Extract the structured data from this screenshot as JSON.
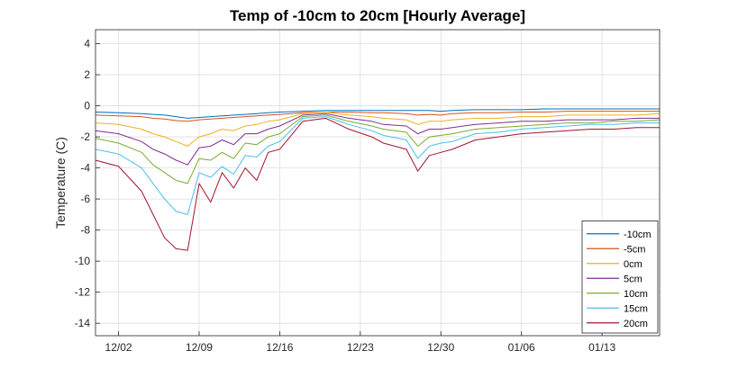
{
  "chart_data": {
    "type": "line",
    "title": "Temp of -10cm to 20cm [Hourly Average]",
    "ylabel": "Temperature (C)",
    "xlabel": "",
    "ylim": [
      -14.8,
      4.9
    ],
    "xlim": [
      "2025-11-30",
      "2026-01-18"
    ],
    "x_ticks": [
      {
        "date": "2025-12-02",
        "label": "12/02"
      },
      {
        "date": "2025-12-09",
        "label": "12/09"
      },
      {
        "date": "2025-12-16",
        "label": "12/16"
      },
      {
        "date": "2025-12-23",
        "label": "12/23"
      },
      {
        "date": "2025-12-30",
        "label": "12/30"
      },
      {
        "date": "2026-01-06",
        "label": "01/06"
      },
      {
        "date": "2026-01-13",
        "label": "01/13"
      }
    ],
    "y_ticks": [
      4,
      2,
      0,
      -2,
      -4,
      -6,
      -8,
      -10,
      -12,
      -14
    ],
    "grid": true,
    "legend_position": "bottom-right",
    "x": [
      "2025-11-30",
      "2025-12-02",
      "2025-12-04",
      "2025-12-05",
      "2025-12-06",
      "2025-12-07",
      "2025-12-08",
      "2025-12-09",
      "2025-12-10",
      "2025-12-11",
      "2025-12-12",
      "2025-12-13",
      "2025-12-14",
      "2025-12-15",
      "2025-12-16",
      "2025-12-18",
      "2025-12-20",
      "2025-12-22",
      "2025-12-24",
      "2025-12-25",
      "2025-12-27",
      "2025-12-28",
      "2025-12-29",
      "2025-12-30",
      "2025-12-31",
      "2026-01-02",
      "2026-01-04",
      "2026-01-06",
      "2026-01-08",
      "2026-01-10",
      "2026-01-12",
      "2026-01-14",
      "2026-01-16",
      "2026-01-18"
    ],
    "series": [
      {
        "name": "-10cm",
        "color": "#0072BD",
        "values": [
          -0.4,
          -0.45,
          -0.5,
          -0.55,
          -0.6,
          -0.7,
          -0.8,
          -0.75,
          -0.7,
          -0.65,
          -0.6,
          -0.55,
          -0.5,
          -0.45,
          -0.4,
          -0.35,
          -0.3,
          -0.3,
          -0.3,
          -0.3,
          -0.3,
          -0.3,
          -0.3,
          -0.35,
          -0.3,
          -0.25,
          -0.25,
          -0.25,
          -0.2,
          -0.2,
          -0.2,
          -0.2,
          -0.2,
          -0.2
        ]
      },
      {
        "name": "-5cm",
        "color": "#D95319",
        "values": [
          -0.6,
          -0.65,
          -0.7,
          -0.8,
          -0.85,
          -0.95,
          -1.0,
          -0.9,
          -0.85,
          -0.8,
          -0.75,
          -0.7,
          -0.65,
          -0.6,
          -0.55,
          -0.45,
          -0.4,
          -0.4,
          -0.45,
          -0.45,
          -0.5,
          -0.6,
          -0.55,
          -0.6,
          -0.5,
          -0.45,
          -0.45,
          -0.4,
          -0.4,
          -0.35,
          -0.35,
          -0.35,
          -0.35,
          -0.35
        ]
      },
      {
        "name": "0cm",
        "color": "#EDB120",
        "values": [
          -1.1,
          -1.2,
          -1.5,
          -1.8,
          -2.0,
          -2.3,
          -2.6,
          -2.0,
          -1.8,
          -1.5,
          -1.6,
          -1.3,
          -1.2,
          -1.0,
          -0.9,
          -0.5,
          -0.4,
          -0.6,
          -0.7,
          -0.8,
          -0.9,
          -1.2,
          -1.0,
          -1.0,
          -0.9,
          -0.8,
          -0.8,
          -0.7,
          -0.7,
          -0.6,
          -0.6,
          -0.6,
          -0.6,
          -0.5
        ]
      },
      {
        "name": "5cm",
        "color": "#7E2F8E",
        "values": [
          -1.6,
          -1.8,
          -2.3,
          -2.8,
          -3.1,
          -3.5,
          -3.8,
          -2.7,
          -2.6,
          -2.2,
          -2.5,
          -1.8,
          -1.8,
          -1.5,
          -1.3,
          -0.6,
          -0.5,
          -0.8,
          -1.0,
          -1.2,
          -1.3,
          -1.8,
          -1.5,
          -1.5,
          -1.4,
          -1.2,
          -1.1,
          -1.0,
          -1.0,
          -0.9,
          -0.9,
          -0.9,
          -0.8,
          -0.8
        ]
      },
      {
        "name": "10cm",
        "color": "#77AC30",
        "values": [
          -2.1,
          -2.4,
          -3.0,
          -3.8,
          -4.3,
          -4.8,
          -5.0,
          -3.4,
          -3.5,
          -3.0,
          -3.4,
          -2.4,
          -2.5,
          -2.0,
          -1.8,
          -0.7,
          -0.6,
          -1.0,
          -1.3,
          -1.5,
          -1.7,
          -2.6,
          -2.0,
          -1.9,
          -1.8,
          -1.5,
          -1.4,
          -1.3,
          -1.2,
          -1.1,
          -1.1,
          -1.0,
          -1.0,
          -0.9
        ]
      },
      {
        "name": "15cm",
        "color": "#4DBEEE",
        "values": [
          -2.8,
          -3.1,
          -4.0,
          -5.0,
          -6.0,
          -6.8,
          -7.0,
          -4.3,
          -4.6,
          -3.9,
          -4.4,
          -3.2,
          -3.3,
          -2.6,
          -2.3,
          -0.8,
          -0.7,
          -1.2,
          -1.6,
          -1.9,
          -2.2,
          -3.4,
          -2.6,
          -2.4,
          -2.3,
          -1.8,
          -1.7,
          -1.5,
          -1.4,
          -1.3,
          -1.2,
          -1.2,
          -1.1,
          -1.1
        ]
      },
      {
        "name": "20cm",
        "color": "#A2142F",
        "values": [
          -3.5,
          -3.9,
          -5.5,
          -7.0,
          -8.5,
          -9.2,
          -9.3,
          -5.0,
          -6.2,
          -4.3,
          -5.3,
          -4.0,
          -4.8,
          -3.0,
          -2.8,
          -1.0,
          -0.8,
          -1.5,
          -2.0,
          -2.4,
          -2.8,
          -4.2,
          -3.2,
          -3.0,
          -2.8,
          -2.2,
          -2.0,
          -1.8,
          -1.7,
          -1.6,
          -1.5,
          -1.5,
          -1.4,
          -1.4
        ]
      }
    ]
  }
}
